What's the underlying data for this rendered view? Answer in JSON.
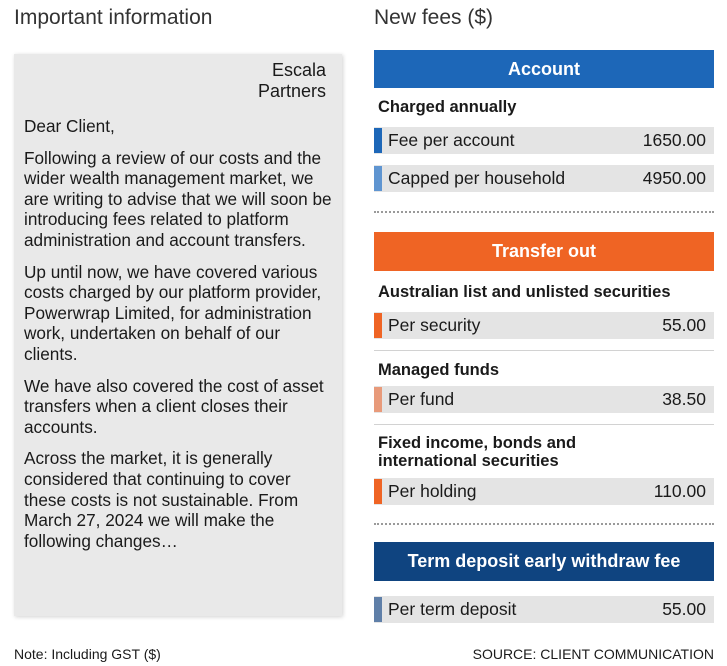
{
  "headings": {
    "left": "Important information",
    "right": "New fees ($)"
  },
  "letter": {
    "sender_line1": "Escala",
    "sender_line2": "Partners",
    "greeting": "Dear Client,",
    "paragraphs": [
      "Following a review of our costs and the wider wealth management market, we are writing to advise that we will soon be introducing fees related to platform administration and account transfers.",
      "Up until now, we have covered various costs charged by our platform provider, Powerwrap Limited, for administration work, undertaken on behalf of our clients.",
      "We have also covered the cost of asset transfers when a client closes their accounts.",
      "Across the market, it is generally considered that continuing to cover these costs is not sustainable. From March 27,  2024 we will make the following changes…"
    ]
  },
  "fees": {
    "account": {
      "title": "Account",
      "subheading": "Charged annually",
      "rows": [
        {
          "label": "Fee per account",
          "value": "1650.00"
        },
        {
          "label": "Capped per household",
          "value": "4950.00"
        }
      ]
    },
    "transfer": {
      "title": "Transfer out",
      "groups": [
        {
          "subheading": "Australian list and unlisted securities",
          "label": "Per security",
          "value": "55.00"
        },
        {
          "subheading": "Managed funds",
          "label": "Per fund",
          "value": "38.50"
        },
        {
          "subheading_line1": "Fixed income, bonds and",
          "subheading_line2": "international securities",
          "label": "Per holding",
          "value": "110.00"
        }
      ]
    },
    "term": {
      "title": "Term deposit early withdraw fee",
      "label": "Per term deposit",
      "value": "55.00"
    }
  },
  "colors": {
    "account_blue": "#1d67b8",
    "account_light": "#5f95d1",
    "transfer_orange": "#ef6424",
    "transfer_light": "#e89a7a",
    "term_navy": "#0f4480",
    "term_marker": "#5f7fa8"
  },
  "footer": {
    "note": "Note: Including GST ($)",
    "source": "SOURCE: CLIENT COMMUNICATION"
  }
}
